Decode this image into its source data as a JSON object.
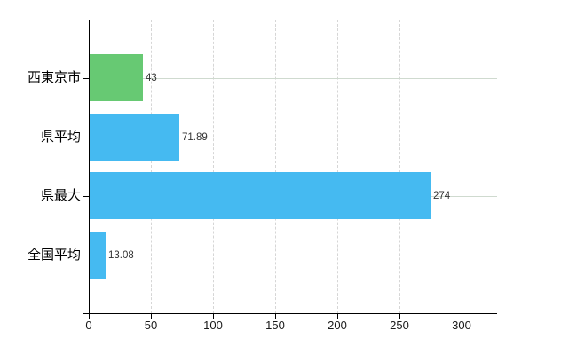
{
  "chart_data": {
    "type": "bar",
    "orientation": "horizontal",
    "title": "",
    "xlabel": "",
    "ylabel": "",
    "legend": "none",
    "grid": "on",
    "categories": [
      "西東京市",
      "県平均",
      "県最大",
      "全国平均"
    ],
    "series": [
      {
        "name": "values",
        "values": [
          43,
          71.89,
          274,
          13.08
        ]
      }
    ],
    "value_labels": [
      "43",
      "71.89",
      "274",
      "13.08"
    ],
    "bar_colors": [
      "#67c973",
      "#45baf1",
      "#45baf1",
      "#45baf1"
    ],
    "x_ticks": [
      "0",
      "50",
      "100",
      "150",
      "200",
      "250",
      "300"
    ],
    "x_tick_values": [
      0,
      50,
      100,
      150,
      200,
      250,
      300
    ],
    "xlim": [
      0,
      328.6
    ],
    "colors": {
      "axis": "#000000",
      "grid_dashed": "#d6d6d6",
      "grid_solid": "#cfdacf",
      "tick_text": "#1a1a1a",
      "value_text": "#333333",
      "background": "#ffffff"
    }
  }
}
